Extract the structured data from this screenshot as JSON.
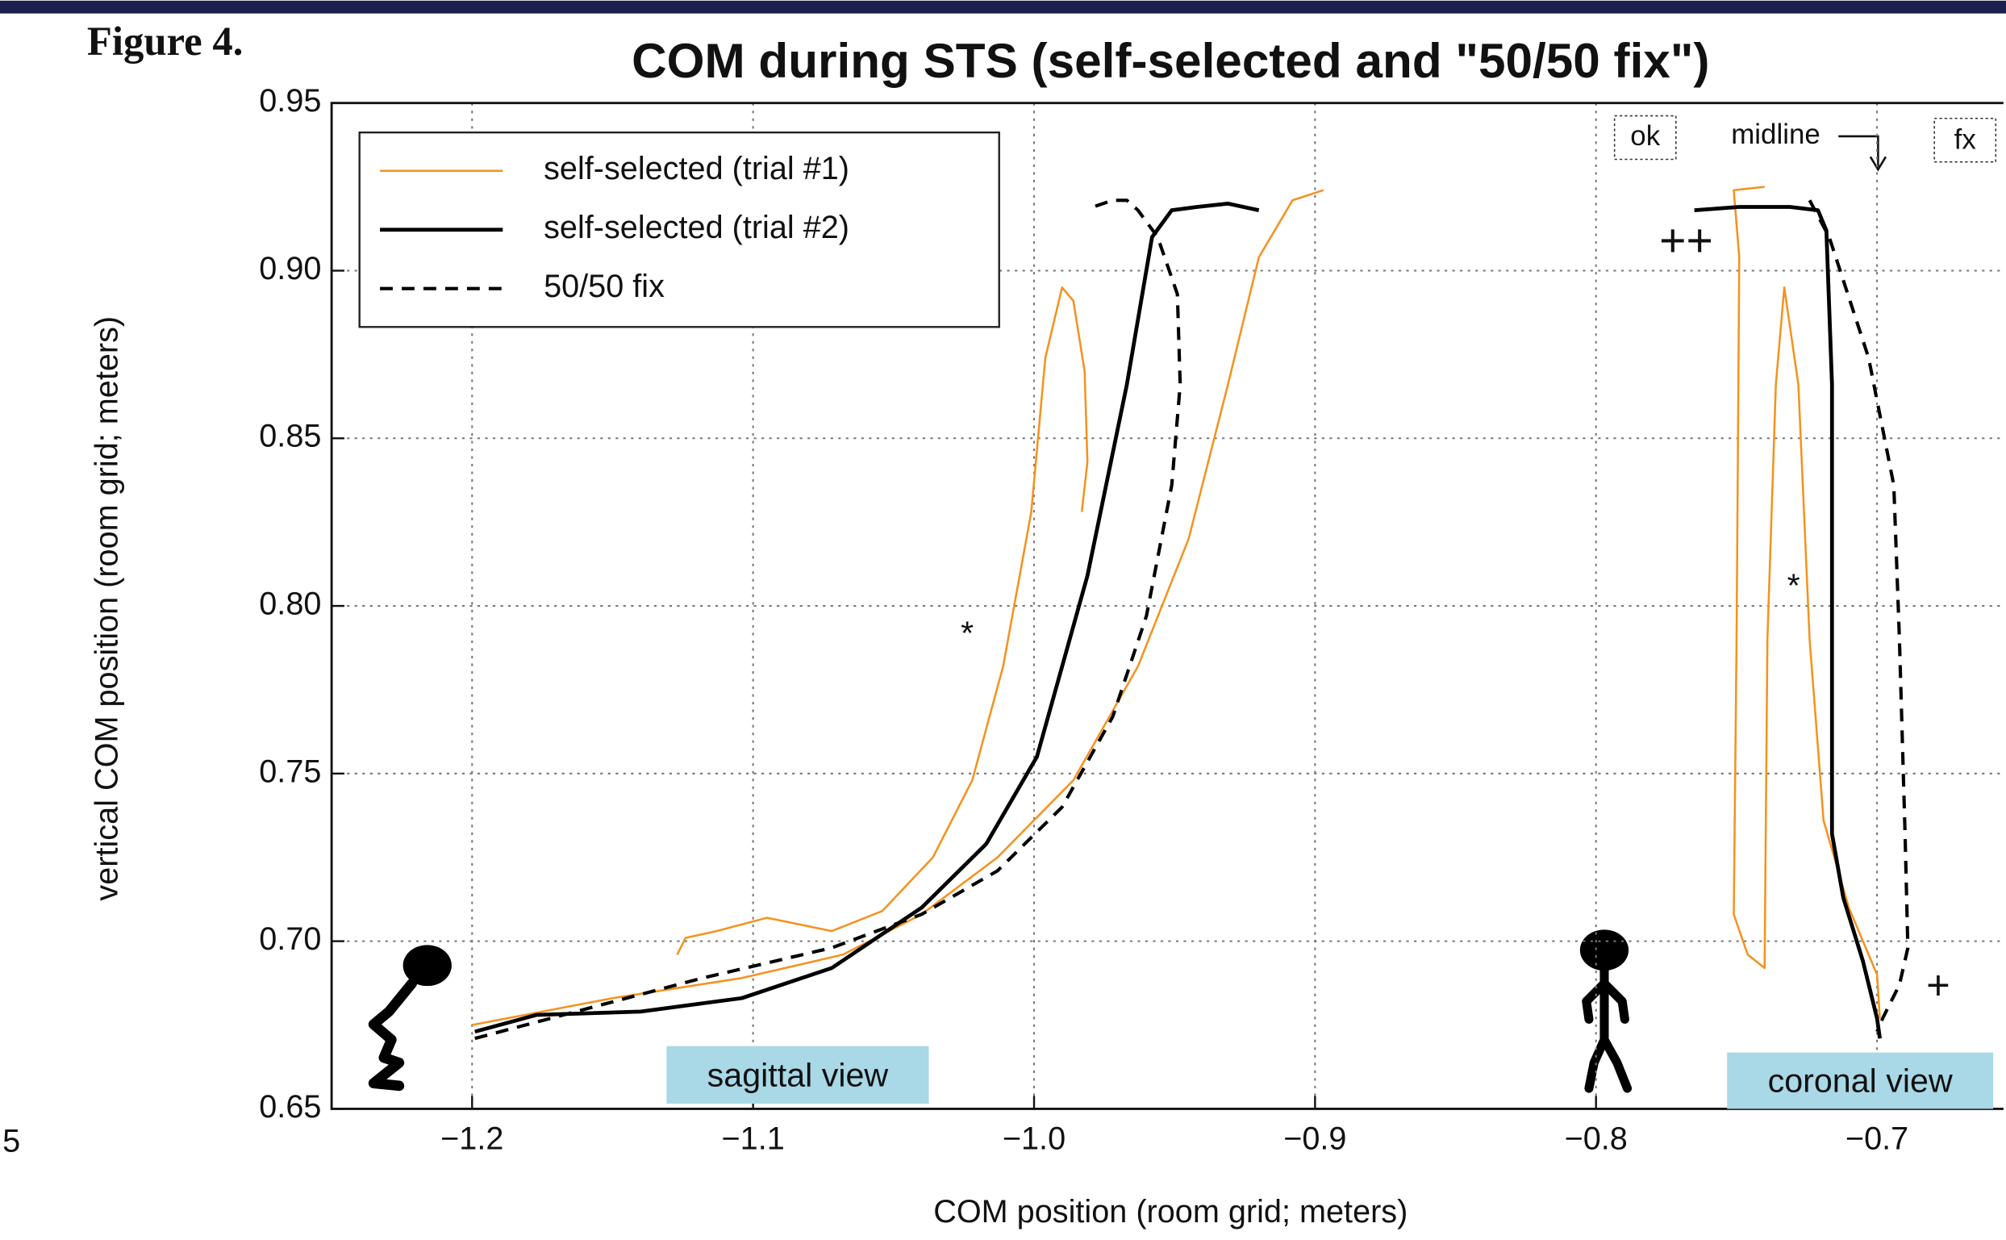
{
  "figure_label": "Figure 4.",
  "edge_fragment": "5",
  "chart_data": {
    "type": "line",
    "title": "COM during STS (self-selected and \"50/50 fix\")",
    "x_label": "COM position (room grid; meters)",
    "y_label": "vertical COM position (room grid; meters)",
    "xlim": [
      -1.25,
      -0.655
    ],
    "ylim": [
      0.65,
      0.95
    ],
    "xticks": [
      {
        "value": -1.2,
        "label": "−1.2"
      },
      {
        "value": -1.1,
        "label": "−1.1"
      },
      {
        "value": -1.0,
        "label": "−1.0"
      },
      {
        "value": -0.9,
        "label": "−0.9"
      },
      {
        "value": -0.8,
        "label": "−0.8"
      },
      {
        "value": -0.7,
        "label": "−0.7"
      }
    ],
    "yticks": [
      0.65,
      {
        "value": 0.7,
        "label": "0.70"
      },
      0.75,
      {
        "value": 0.8,
        "label": "0.80"
      },
      0.85,
      {
        "value": 0.9,
        "label": "0.90"
      },
      0.95
    ],
    "grid": true,
    "legend": "top-left",
    "series": [
      {
        "name": "self-selected (trial #1)",
        "color": "#f5921e",
        "line_style": "solid",
        "x": [
          -0.897,
          -0.908,
          -0.92,
          -0.931,
          -0.945,
          -0.963,
          -0.986,
          -1.013,
          -1.04,
          -1.068,
          -1.104,
          -1.15,
          -1.2,
          null,
          -1.127,
          -1.124,
          -1.113,
          -1.095,
          -1.072,
          -1.054,
          -1.036,
          -1.022,
          -1.011,
          -1.001,
          -0.996,
          -0.99,
          -0.986,
          -0.982,
          -0.981,
          -0.983,
          null,
          -0.74,
          -0.751,
          -0.749,
          -0.75,
          -0.751,
          -0.746,
          -0.74,
          -0.739,
          -0.736,
          -0.733,
          -0.728,
          -0.724,
          -0.719,
          -0.71,
          -0.7,
          -0.699
        ],
        "values": [
          0.924,
          0.921,
          0.904,
          0.866,
          0.82,
          0.782,
          0.748,
          0.725,
          0.708,
          0.696,
          0.689,
          0.683,
          0.675,
          null,
          0.696,
          0.701,
          0.703,
          0.707,
          0.703,
          0.709,
          0.725,
          0.748,
          0.782,
          0.828,
          0.874,
          0.895,
          0.891,
          0.87,
          0.843,
          0.828,
          null,
          0.925,
          0.924,
          0.904,
          0.79,
          0.708,
          0.696,
          0.692,
          0.79,
          0.866,
          0.895,
          0.866,
          0.79,
          0.736,
          0.71,
          0.69,
          0.677
        ]
      },
      {
        "name": "self-selected (trial #2)",
        "color": "#000000",
        "line_style": "solid",
        "x": [
          -1.199,
          -1.177,
          -1.14,
          -1.104,
          -1.072,
          -1.04,
          -1.017,
          -0.999,
          -0.981,
          -0.967,
          -0.958,
          -0.951,
          -0.942,
          -0.931,
          -0.92,
          null,
          -0.765,
          -0.749,
          -0.731,
          -0.721,
          -0.718,
          -0.716,
          -0.716,
          -0.716,
          -0.712,
          -0.705,
          -0.7,
          -0.699
        ],
        "values": [
          0.673,
          0.678,
          0.679,
          0.683,
          0.692,
          0.71,
          0.729,
          0.755,
          0.809,
          0.866,
          0.91,
          0.918,
          0.919,
          0.92,
          0.918,
          null,
          0.918,
          0.919,
          0.919,
          0.918,
          0.912,
          0.866,
          0.79,
          0.732,
          0.713,
          0.694,
          0.677,
          0.671
        ]
      },
      {
        "name": "50/50 fix",
        "color": "#000000",
        "line_style": "dashed",
        "x": [
          -1.199,
          -1.163,
          -1.118,
          -1.072,
          -1.04,
          -1.013,
          -0.99,
          -0.972,
          -0.96,
          -0.951,
          -0.948,
          -0.949,
          -0.956,
          -0.963,
          -0.967,
          -0.972,
          -0.979,
          null,
          -0.724,
          -0.717,
          -0.703,
          -0.694,
          -0.692,
          -0.69,
          -0.689,
          -0.692,
          -0.698,
          -0.7
        ],
        "values": [
          0.671,
          0.679,
          0.689,
          0.698,
          0.708,
          0.721,
          0.74,
          0.767,
          0.797,
          0.836,
          0.866,
          0.893,
          0.91,
          0.918,
          0.921,
          0.921,
          0.919,
          null,
          0.921,
          0.91,
          0.874,
          0.836,
          0.79,
          0.732,
          0.698,
          0.687,
          0.677,
          0.673
        ]
      }
    ],
    "annotations": [
      "ok",
      "midline",
      "fx",
      "++",
      "+",
      "*",
      "*"
    ],
    "view_labels": [
      "sagittal view",
      "coronal view"
    ]
  }
}
